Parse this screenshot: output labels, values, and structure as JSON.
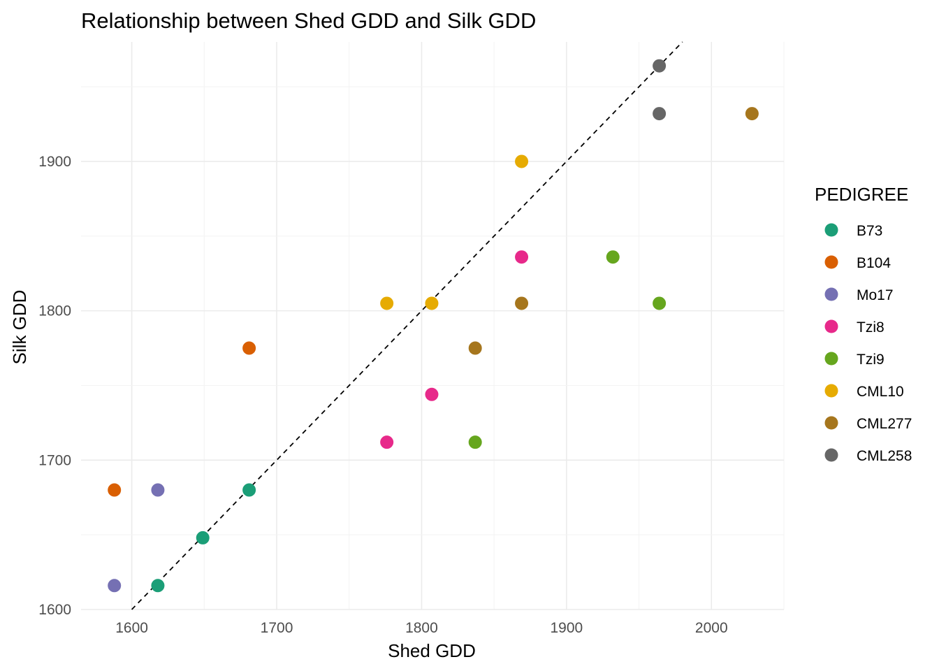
{
  "chart_data": {
    "type": "scatter",
    "title": "Relationship between Shed GDD and Silk GDD",
    "xlabel": "Shed GDD",
    "ylabel": "Silk GDD",
    "xlim": [
      1565,
      2050
    ],
    "ylim": [
      1600,
      1980
    ],
    "x_ticks": [
      1600,
      1700,
      1800,
      1900,
      2000
    ],
    "y_ticks": [
      1600,
      1700,
      1800,
      1900
    ],
    "grid": true,
    "reference_line": {
      "type": "identity",
      "style": "dashed",
      "color": "#000000"
    },
    "legend": {
      "title": "PEDIGREE",
      "placement": "right"
    },
    "series": [
      {
        "name": "B73",
        "color": "#1B9E77",
        "points": [
          [
            1618,
            1616
          ],
          [
            1649,
            1648
          ],
          [
            1681,
            1680
          ]
        ]
      },
      {
        "name": "B104",
        "color": "#D95F02",
        "points": [
          [
            1588,
            1680
          ],
          [
            1681,
            1775
          ]
        ]
      },
      {
        "name": "Mo17",
        "color": "#7570B3",
        "points": [
          [
            1588,
            1616
          ],
          [
            1618,
            1680
          ]
        ]
      },
      {
        "name": "Tzi8",
        "color": "#E7298A",
        "points": [
          [
            1776,
            1712
          ],
          [
            1807,
            1744
          ],
          [
            1869,
            1836
          ]
        ]
      },
      {
        "name": "Tzi9",
        "color": "#66A61E",
        "points": [
          [
            1837,
            1712
          ],
          [
            1932,
            1836
          ],
          [
            1964,
            1805
          ]
        ]
      },
      {
        "name": "CML10",
        "color": "#E6AB02",
        "points": [
          [
            1776,
            1805
          ],
          [
            1807,
            1805
          ],
          [
            1869,
            1900
          ]
        ]
      },
      {
        "name": "CML277",
        "color": "#A6761D",
        "points": [
          [
            1837,
            1775
          ],
          [
            1869,
            1805
          ],
          [
            2028,
            1932
          ]
        ]
      },
      {
        "name": "CML258",
        "color": "#666666",
        "points": [
          [
            1964,
            1932
          ],
          [
            1964,
            1964
          ]
        ]
      }
    ]
  }
}
